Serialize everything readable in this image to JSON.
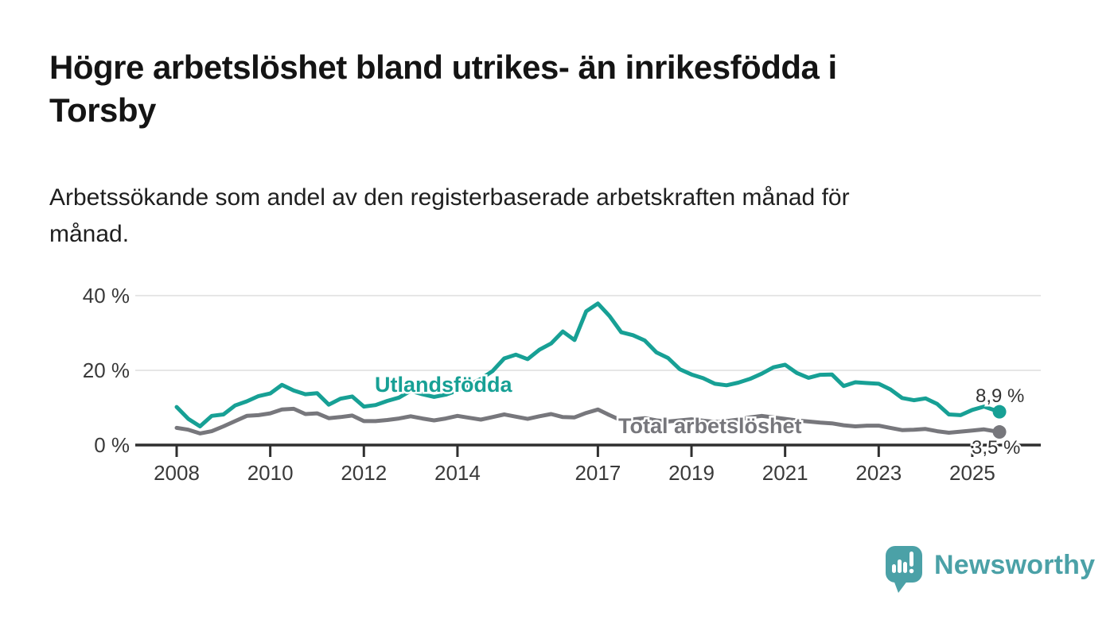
{
  "header": {
    "title_line1": "Högre arbetslöshet bland utrikes- än inrikesfödda i",
    "title_line2": "Torsby",
    "subtitle_line1": "Arbetssökande som andel av den registerbaserade arbetskraften månad för",
    "subtitle_line2": "månad."
  },
  "footer": {
    "brand_name": "Newsworthy",
    "brand_color": "#4ba1a7",
    "logo_icon": "speech-bubble-bar-chart-icon"
  },
  "colors": {
    "background": "#ffffff",
    "title_text": "#141414",
    "subtitle_text": "#1f1f1f",
    "axis": "#2f2f2f",
    "tick_label": "#3a3a3a",
    "gridline": "#dedede",
    "annotation_text": "#333333",
    "series_foreign_born": "#17a095",
    "series_total": "#77777c"
  },
  "chart_data": {
    "type": "line",
    "unit": "%",
    "frequency": "monthly",
    "grid": "horizontal-light",
    "legend": "inline-labels-on-chart",
    "ylim": [
      0,
      43
    ],
    "xlim": [
      2007.1,
      2026.5
    ],
    "y_ticks": [
      {
        "value": 0,
        "label": "0 %"
      },
      {
        "value": 20,
        "label": "20 %"
      },
      {
        "value": 40,
        "label": "40 %"
      }
    ],
    "x_ticks": [
      {
        "value": 2008,
        "label": "2008"
      },
      {
        "value": 2010,
        "label": "2010"
      },
      {
        "value": 2012,
        "label": "2012"
      },
      {
        "value": 2014,
        "label": "2014"
      },
      {
        "value": 2017,
        "label": "2017"
      },
      {
        "value": 2019,
        "label": "2019"
      },
      {
        "value": 2021,
        "label": "2021"
      },
      {
        "value": 2023,
        "label": "2023"
      },
      {
        "value": 2025,
        "label": "2025"
      }
    ],
    "x": [
      2008,
      2008.25,
      2008.5,
      2008.75,
      2009,
      2009.25,
      2009.5,
      2009.75,
      2010,
      2010.25,
      2010.5,
      2010.75,
      2011,
      2011.25,
      2011.5,
      2011.75,
      2012,
      2012.25,
      2012.5,
      2012.75,
      2013,
      2013.25,
      2013.5,
      2013.75,
      2014,
      2014.25,
      2014.5,
      2014.75,
      2015,
      2015.25,
      2015.5,
      2015.75,
      2016,
      2016.25,
      2016.5,
      2016.75,
      2017,
      2017.25,
      2017.5,
      2017.75,
      2018,
      2018.25,
      2018.5,
      2018.75,
      2019,
      2019.25,
      2019.5,
      2019.75,
      2020,
      2020.25,
      2020.5,
      2020.75,
      2021,
      2021.25,
      2021.5,
      2021.75,
      2022,
      2022.25,
      2022.5,
      2022.75,
      2023,
      2023.25,
      2023.5,
      2023.75,
      2024,
      2024.25,
      2024.5,
      2024.75,
      2025,
      2025.25,
      2025.58
    ],
    "series": [
      {
        "name": "Utlandsfödda",
        "color": "#17a095",
        "end_value": 8.9,
        "end_label": "8,9 %",
        "values": [
          10.2,
          7.0,
          5.0,
          7.8,
          8.2,
          10.6,
          11.7,
          13.1,
          13.8,
          16.1,
          14.6,
          13.6,
          13.9,
          10.8,
          12.4,
          13.0,
          10.3,
          10.7,
          11.8,
          12.7,
          14.5,
          13.6,
          12.9,
          13.5,
          14.6,
          16.1,
          17.7,
          19.8,
          23.2,
          24.2,
          23.0,
          25.5,
          27.2,
          30.4,
          28.1,
          35.8,
          37.9,
          34.5,
          30.2,
          29.4,
          28.0,
          24.8,
          23.3,
          20.3,
          18.9,
          17.9,
          16.4,
          16.0,
          16.7,
          17.7,
          19.1,
          20.8,
          21.5,
          19.3,
          18.0,
          18.8,
          18.9,
          15.8,
          16.8,
          16.6,
          16.4,
          14.9,
          12.6,
          12.0,
          12.5,
          11.0,
          8.2,
          8.0,
          9.4,
          10.3,
          8.9
        ]
      },
      {
        "name": "Total arbetslöshet",
        "color": "#77777c",
        "end_value": 3.5,
        "end_label": "3,5 %",
        "values": [
          4.6,
          4.1,
          3.1,
          3.7,
          5.0,
          6.4,
          7.8,
          8.0,
          8.5,
          9.5,
          9.7,
          8.3,
          8.5,
          7.2,
          7.5,
          7.9,
          6.4,
          6.4,
          6.7,
          7.1,
          7.7,
          7.1,
          6.6,
          7.1,
          7.8,
          7.3,
          6.8,
          7.5,
          8.2,
          7.6,
          7.0,
          7.7,
          8.3,
          7.5,
          7.4,
          8.6,
          9.5,
          8.0,
          6.6,
          6.9,
          7.2,
          6.6,
          6.3,
          6.6,
          6.9,
          6.5,
          6.2,
          6.4,
          6.8,
          7.4,
          7.8,
          7.4,
          7.0,
          6.6,
          6.3,
          6.0,
          5.8,
          5.3,
          5.0,
          5.2,
          5.2,
          4.6,
          4.0,
          4.1,
          4.3,
          3.7,
          3.3,
          3.6,
          3.9,
          4.2,
          3.5
        ]
      }
    ]
  }
}
